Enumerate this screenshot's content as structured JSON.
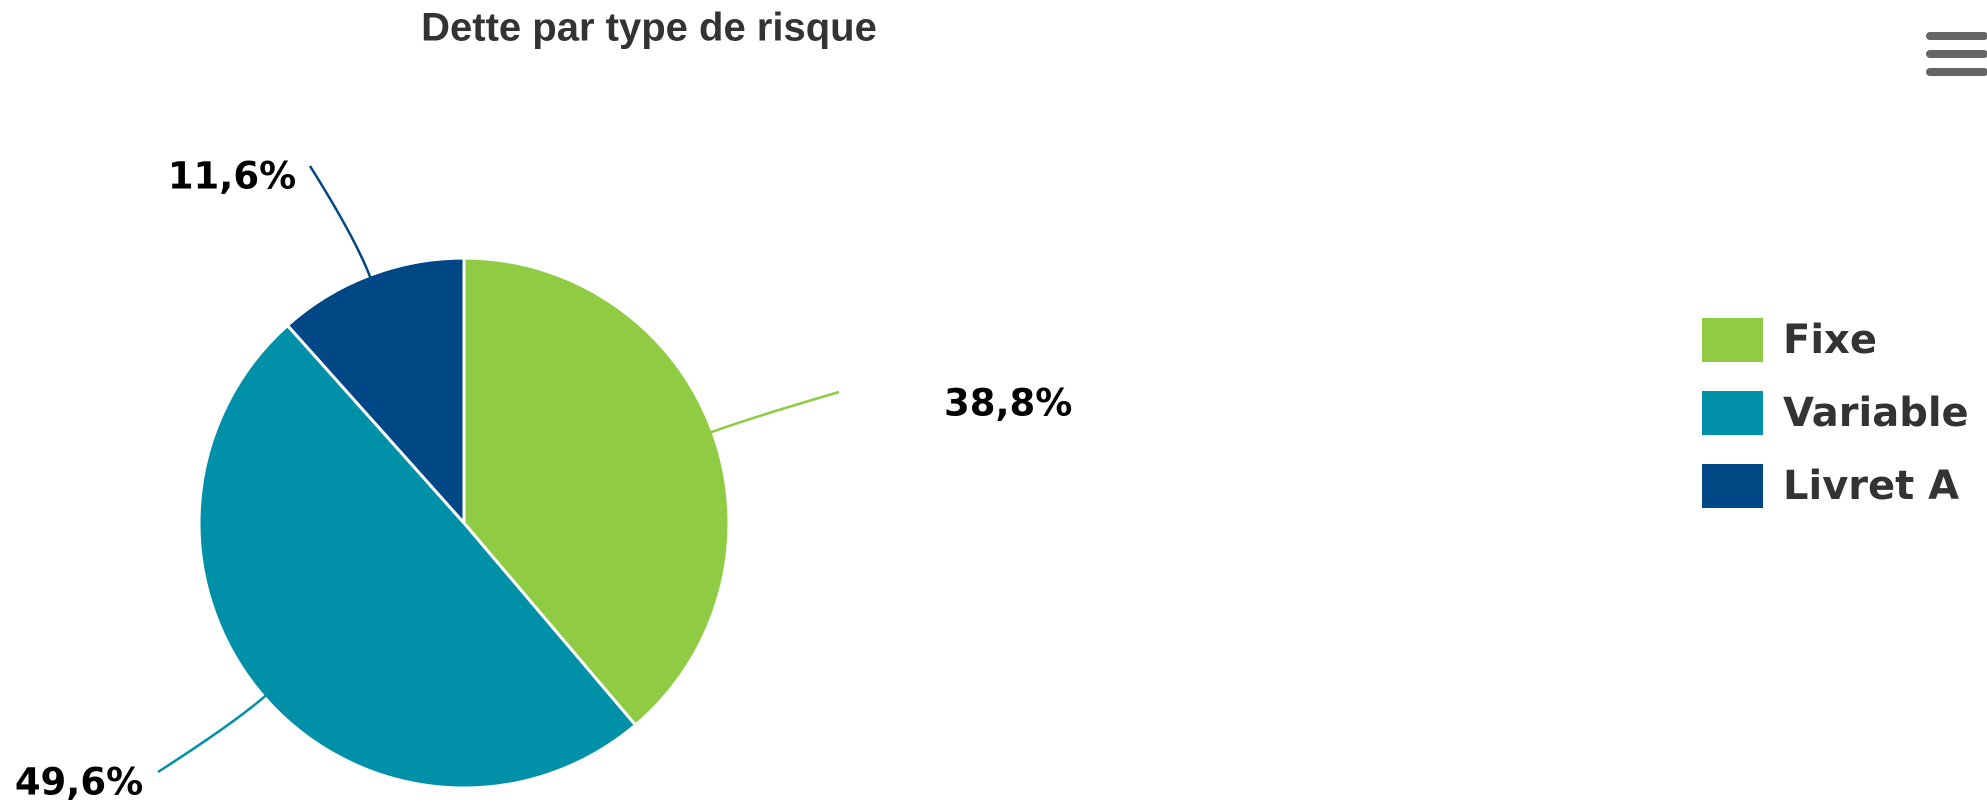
{
  "chart_data": {
    "type": "pie",
    "title": "Dette par type de risque",
    "categories": [
      "Fixe",
      "Variable",
      "Livret A"
    ],
    "values": [
      38.8,
      49.6,
      11.6
    ],
    "value_labels": [
      "38,8%",
      "49,6%",
      "11,6%"
    ],
    "colors": [
      "#8fcc43",
      "#0090a8",
      "#004785"
    ],
    "legend": "right"
  }
}
